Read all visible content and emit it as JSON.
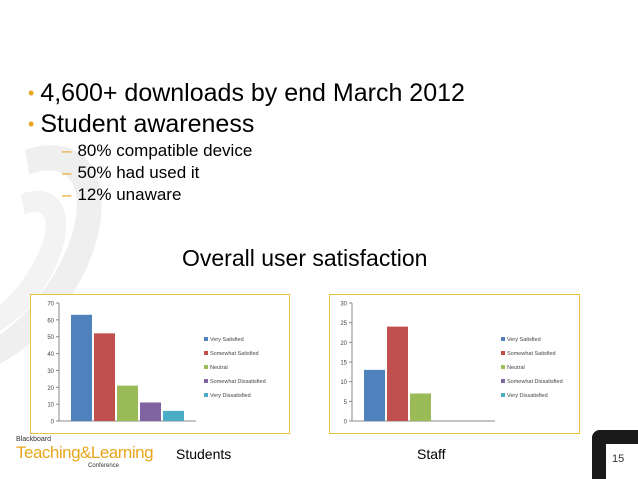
{
  "slide": {
    "bullets": [
      {
        "text": "4,600+ downloads by end March 2012"
      },
      {
        "text": "Student awareness"
      }
    ],
    "subbullets": [
      {
        "text": "80% compatible device"
      },
      {
        "text": "50% had used it"
      },
      {
        "text": "12% unaware"
      }
    ],
    "bullet_glyph": "•",
    "dash_glyph": "–",
    "subtitle": "Overall user satisfaction",
    "captions": {
      "students": "Students",
      "staff": "Staff"
    },
    "logo": {
      "line1": "Blackboard",
      "line2": "Teaching&Learning",
      "line3": "Conference"
    },
    "page_number": "15",
    "accent_color": "#e8a61f"
  },
  "chart_data": [
    {
      "type": "bar",
      "categories": [
        "Very Satisfied",
        "Somewhat Satisfied",
        "Neutral",
        "Somewhat Dissatisfied",
        "Very Dissatisfied"
      ],
      "values": [
        63,
        52,
        21,
        11,
        6
      ],
      "ylim": [
        0,
        70
      ],
      "yticks": [
        "0",
        "10",
        "20",
        "30",
        "40",
        "50",
        "60",
        "70"
      ],
      "colors": [
        "#4f81bd",
        "#c0504d",
        "#9bbb59",
        "#8064a2",
        "#4bacc6"
      ],
      "legend": "right",
      "grid": false
    },
    {
      "type": "bar",
      "categories": [
        "Very Satisfied",
        "Somewhat Satisfied",
        "Neutral",
        "Somewhat Dissatisfied",
        "Very Dissatisfied"
      ],
      "values": [
        13,
        24,
        7,
        0,
        0
      ],
      "ylim": [
        0,
        30
      ],
      "yticks": [
        "0",
        "5",
        "10",
        "15",
        "20",
        "25",
        "30"
      ],
      "colors": [
        "#4f81bd",
        "#c0504d",
        "#9bbb59",
        "#8064a2",
        "#4bacc6"
      ],
      "legend": "right",
      "grid": false
    }
  ]
}
